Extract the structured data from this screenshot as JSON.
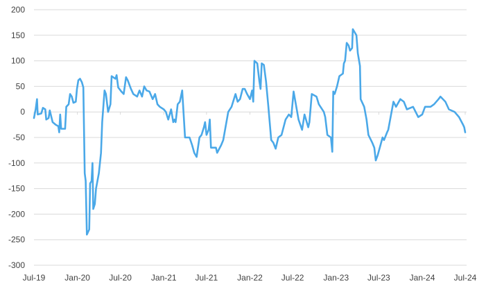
{
  "chart_data": {
    "type": "line",
    "title": "",
    "xlabel": "",
    "ylabel": "",
    "ylim": [
      -300,
      200
    ],
    "yticks": [
      200,
      150,
      100,
      50,
      0,
      -50,
      -100,
      -150,
      -200,
      -250,
      -300
    ],
    "xlim": [
      "2019-07-01",
      "2024-07-01"
    ],
    "xtick_labels": [
      {
        "date": "2019-07-01",
        "label": "Jul-19"
      },
      {
        "date": "2020-01-01",
        "label": "Jan-20"
      },
      {
        "date": "2020-07-01",
        "label": "Jul-20"
      },
      {
        "date": "2021-01-01",
        "label": "Jan-21"
      },
      {
        "date": "2021-07-01",
        "label": "Jul-21"
      },
      {
        "date": "2022-01-01",
        "label": "Jan-22"
      },
      {
        "date": "2022-07-01",
        "label": "Jul-22"
      },
      {
        "date": "2023-01-01",
        "label": "Jan-23"
      },
      {
        "date": "2023-07-01",
        "label": "Jul-23"
      },
      {
        "date": "2024-01-01",
        "label": "Jan-24"
      },
      {
        "date": "2024-07-01",
        "label": "Jul-24"
      }
    ],
    "grid": true,
    "legend": "none",
    "line_color": "#4aa8e8",
    "series": [
      {
        "points": [
          [
            "2019-07-01",
            -12
          ],
          [
            "2019-07-08",
            5
          ],
          [
            "2019-07-14",
            25
          ],
          [
            "2019-07-17",
            -5
          ],
          [
            "2019-08-01",
            -3
          ],
          [
            "2019-08-08",
            8
          ],
          [
            "2019-08-18",
            5
          ],
          [
            "2019-08-22",
            -15
          ],
          [
            "2019-09-01",
            -12
          ],
          [
            "2019-09-06",
            3
          ],
          [
            "2019-09-18",
            -20
          ],
          [
            "2019-10-01",
            -25
          ],
          [
            "2019-10-12",
            -28
          ],
          [
            "2019-10-16",
            -40
          ],
          [
            "2019-10-20",
            -5
          ],
          [
            "2019-10-24",
            -33
          ],
          [
            "2019-11-10",
            -33
          ],
          [
            "2019-11-15",
            10
          ],
          [
            "2019-11-25",
            15
          ],
          [
            "2019-12-01",
            35
          ],
          [
            "2019-12-08",
            30
          ],
          [
            "2019-12-15",
            18
          ],
          [
            "2019-12-25",
            20
          ],
          [
            "2019-12-30",
            45
          ],
          [
            "2020-01-05",
            62
          ],
          [
            "2020-01-12",
            65
          ],
          [
            "2020-01-20",
            58
          ],
          [
            "2020-01-26",
            48
          ],
          [
            "2020-02-01",
            -120
          ],
          [
            "2020-02-05",
            -135
          ],
          [
            "2020-02-10",
            -240
          ],
          [
            "2020-02-20",
            -230
          ],
          [
            "2020-02-24",
            -140
          ],
          [
            "2020-03-01",
            -135
          ],
          [
            "2020-03-05",
            -100
          ],
          [
            "2020-03-08",
            -190
          ],
          [
            "2020-03-15",
            -180
          ],
          [
            "2020-03-20",
            -150
          ],
          [
            "2020-04-01",
            -120
          ],
          [
            "2020-04-10",
            -80
          ],
          [
            "2020-04-15",
            -20
          ],
          [
            "2020-04-25",
            42
          ],
          [
            "2020-05-01",
            35
          ],
          [
            "2020-05-10",
            0
          ],
          [
            "2020-05-20",
            15
          ],
          [
            "2020-05-25",
            70
          ],
          [
            "2020-06-10",
            65
          ],
          [
            "2020-06-15",
            72
          ],
          [
            "2020-06-22",
            48
          ],
          [
            "2020-07-05",
            40
          ],
          [
            "2020-07-15",
            35
          ],
          [
            "2020-07-25",
            68
          ],
          [
            "2020-08-01",
            62
          ],
          [
            "2020-08-15",
            45
          ],
          [
            "2020-08-25",
            35
          ],
          [
            "2020-09-10",
            30
          ],
          [
            "2020-09-20",
            42
          ],
          [
            "2020-10-01",
            30
          ],
          [
            "2020-10-10",
            50
          ],
          [
            "2020-10-20",
            42
          ],
          [
            "2020-11-01",
            40
          ],
          [
            "2020-11-15",
            25
          ],
          [
            "2020-11-25",
            35
          ],
          [
            "2020-12-05",
            15
          ],
          [
            "2020-12-15",
            10
          ],
          [
            "2021-01-01",
            5
          ],
          [
            "2021-01-10",
            0
          ],
          [
            "2021-01-20",
            -15
          ],
          [
            "2021-02-01",
            5
          ],
          [
            "2021-02-10",
            -20
          ],
          [
            "2021-02-15",
            -15
          ],
          [
            "2021-02-20",
            -20
          ],
          [
            "2021-03-01",
            15
          ],
          [
            "2021-03-10",
            20
          ],
          [
            "2021-03-20",
            42
          ],
          [
            "2021-04-01",
            -50
          ],
          [
            "2021-04-20",
            -50
          ],
          [
            "2021-05-01",
            -65
          ],
          [
            "2021-05-10",
            -80
          ],
          [
            "2021-05-20",
            -88
          ],
          [
            "2021-06-01",
            -50
          ],
          [
            "2021-06-10",
            -45
          ],
          [
            "2021-06-20",
            -30
          ],
          [
            "2021-06-25",
            -20
          ],
          [
            "2021-07-01",
            -45
          ],
          [
            "2021-07-10",
            -35
          ],
          [
            "2021-07-15",
            -15
          ],
          [
            "2021-07-20",
            -70
          ],
          [
            "2021-08-10",
            -70
          ],
          [
            "2021-08-15",
            -80
          ],
          [
            "2021-09-01",
            -65
          ],
          [
            "2021-09-10",
            -55
          ],
          [
            "2021-10-01",
            0
          ],
          [
            "2021-10-15",
            10
          ],
          [
            "2021-11-01",
            35
          ],
          [
            "2021-11-10",
            20
          ],
          [
            "2021-11-20",
            25
          ],
          [
            "2021-12-01",
            45
          ],
          [
            "2021-12-10",
            45
          ],
          [
            "2021-12-20",
            35
          ],
          [
            "2022-01-01",
            25
          ],
          [
            "2022-01-10",
            42
          ],
          [
            "2022-01-15",
            20
          ],
          [
            "2022-01-20",
            100
          ],
          [
            "2022-02-01",
            95
          ],
          [
            "2022-02-10",
            60
          ],
          [
            "2022-02-15",
            45
          ],
          [
            "2022-02-20",
            95
          ],
          [
            "2022-03-01",
            92
          ],
          [
            "2022-03-10",
            60
          ],
          [
            "2022-03-20",
            10
          ],
          [
            "2022-04-01",
            -55
          ],
          [
            "2022-04-10",
            -60
          ],
          [
            "2022-04-20",
            -72
          ],
          [
            "2022-05-01",
            -50
          ],
          [
            "2022-05-15",
            -45
          ],
          [
            "2022-06-01",
            -15
          ],
          [
            "2022-06-15",
            -5
          ],
          [
            "2022-06-25",
            -10
          ],
          [
            "2022-07-05",
            40
          ],
          [
            "2022-07-26",
            -15
          ],
          [
            "2022-08-10",
            -35
          ],
          [
            "2022-08-20",
            -5
          ],
          [
            "2022-09-05",
            -30
          ],
          [
            "2022-09-10",
            -20
          ],
          [
            "2022-09-20",
            35
          ],
          [
            "2022-10-10",
            30
          ],
          [
            "2022-10-20",
            15
          ],
          [
            "2022-11-10",
            0
          ],
          [
            "2022-11-16",
            -10
          ],
          [
            "2022-11-25",
            -45
          ],
          [
            "2022-12-10",
            -50
          ],
          [
            "2022-12-16",
            -78
          ],
          [
            "2022-12-20",
            40
          ],
          [
            "2022-12-26",
            35
          ],
          [
            "2023-01-05",
            50
          ],
          [
            "2023-01-15",
            70
          ],
          [
            "2023-01-30",
            75
          ],
          [
            "2023-02-03",
            95
          ],
          [
            "2023-02-08",
            100
          ],
          [
            "2023-02-15",
            135
          ],
          [
            "2023-02-23",
            130
          ],
          [
            "2023-03-01",
            120
          ],
          [
            "2023-03-10",
            125
          ],
          [
            "2023-03-13",
            162
          ],
          [
            "2023-03-28",
            150
          ],
          [
            "2023-04-03",
            115
          ],
          [
            "2023-04-12",
            90
          ],
          [
            "2023-04-15",
            25
          ],
          [
            "2023-04-30",
            10
          ],
          [
            "2023-05-10",
            -15
          ],
          [
            "2023-05-18",
            -45
          ],
          [
            "2023-06-03",
            -60
          ],
          [
            "2023-06-12",
            -70
          ],
          [
            "2023-06-18",
            -95
          ],
          [
            "2023-06-26",
            -85
          ],
          [
            "2023-07-08",
            -65
          ],
          [
            "2023-07-17",
            -50
          ],
          [
            "2023-07-23",
            -55
          ],
          [
            "2023-08-05",
            -40
          ],
          [
            "2023-08-10",
            -35
          ],
          [
            "2023-08-20",
            -10
          ],
          [
            "2023-09-01",
            20
          ],
          [
            "2023-09-12",
            10
          ],
          [
            "2023-09-30",
            25
          ],
          [
            "2023-10-15",
            20
          ],
          [
            "2023-10-28",
            5
          ],
          [
            "2023-11-23",
            10
          ],
          [
            "2023-12-15",
            -10
          ],
          [
            "2024-01-01",
            -5
          ],
          [
            "2024-01-13",
            10
          ],
          [
            "2024-02-05",
            10
          ],
          [
            "2024-02-20",
            15
          ],
          [
            "2024-03-10",
            25
          ],
          [
            "2024-03-18",
            30
          ],
          [
            "2024-04-08",
            20
          ],
          [
            "2024-04-23",
            5
          ],
          [
            "2024-05-17",
            0
          ],
          [
            "2024-06-05",
            -10
          ],
          [
            "2024-06-22",
            -25
          ],
          [
            "2024-06-27",
            -30
          ],
          [
            "2024-07-01",
            -40
          ]
        ]
      }
    ]
  }
}
